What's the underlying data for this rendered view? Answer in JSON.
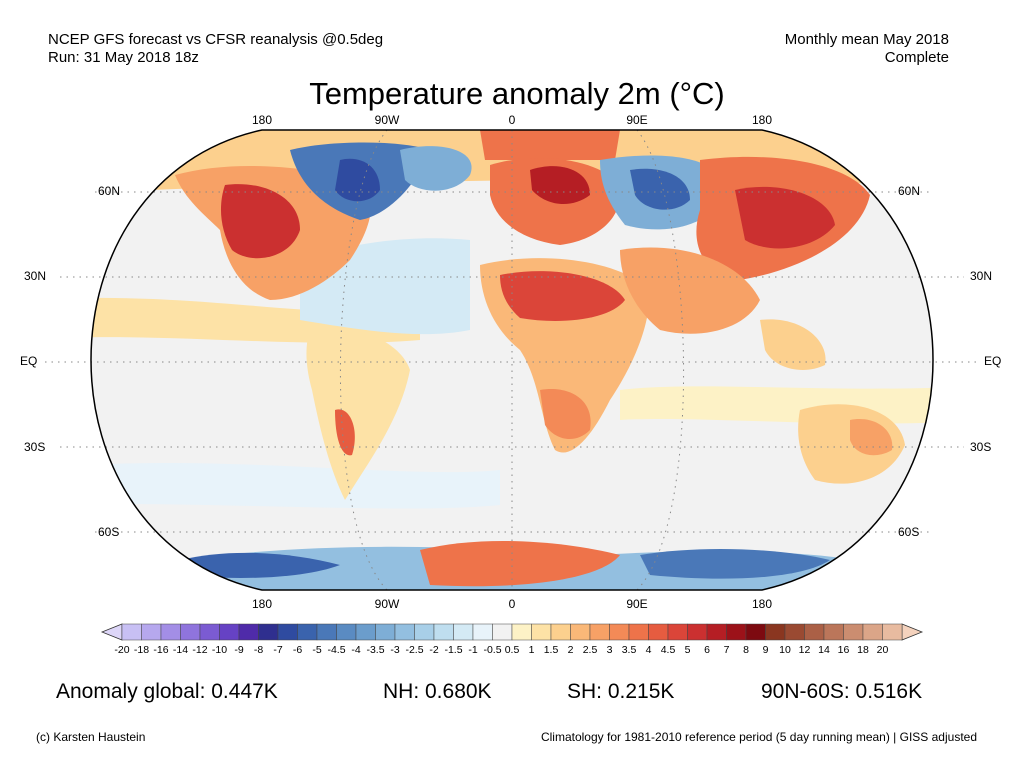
{
  "header": {
    "left_line1": "NCEP GFS forecast vs CFSR reanalysis @0.5deg",
    "left_line2": "Run: 31 May 2018 18z",
    "right_line1": "Monthly mean May 2018",
    "right_line2": "Complete"
  },
  "title": "Temperature anomaly 2m (°C)",
  "lon_labels": [
    "180",
    "90W",
    "0",
    "90E",
    "180"
  ],
  "lat_labels": [
    "60N",
    "30N",
    "EQ",
    "30S",
    "60S"
  ],
  "colorbar": {
    "ticks": [
      "-20",
      "-18",
      "-16",
      "-14",
      "-12",
      "-10",
      "-9",
      "-8",
      "-7",
      "-6",
      "-5",
      "-4.5",
      "-4",
      "-3.5",
      "-3",
      "-2.5",
      "-2",
      "-1.5",
      "-1",
      "-0.5",
      "0.5",
      "1",
      "1.5",
      "2",
      "2.5",
      "3",
      "3.5",
      "4",
      "4.5",
      "5",
      "6",
      "7",
      "8",
      "9",
      "10",
      "12",
      "14",
      "16",
      "18",
      "20"
    ],
    "colors": [
      "#c8c0f4",
      "#b6a8ee",
      "#a38ee6",
      "#8f74dd",
      "#7b5bd2",
      "#6642c4",
      "#4f2ba9",
      "#2f2f8f",
      "#2f4ba0",
      "#3a63ad",
      "#4a78b8",
      "#5a8bc2",
      "#6b9dcc",
      "#7eaed6",
      "#93bfe0",
      "#a8cfe8",
      "#bfdeef",
      "#d4eaf5",
      "#e8f3fa",
      "#f2f2f2",
      "#fdf2c6",
      "#fde2a6",
      "#fcd08e",
      "#fab878",
      "#f7a166",
      "#f38a57",
      "#ee734a",
      "#e65c40",
      "#db4539",
      "#cb3030",
      "#b51e24",
      "#9c1219",
      "#7d0a10",
      "#8a3620",
      "#9a4a32",
      "#ab6046",
      "#bb765a",
      "#cb8d70",
      "#dba588",
      "#e8bba0"
    ],
    "lower_extend_color": "#ddd6f8",
    "upper_extend_color": "#f4d2bd"
  },
  "stats": {
    "global": "Anomaly global: 0.447K",
    "nh": "NH: 0.680K",
    "sh": "SH: 0.215K",
    "polar": "90N-60S: 0.516K"
  },
  "footer": {
    "left": "(c) Karsten Haustein",
    "right": "Climatology for 1981-2010 reference period (5 day running mean) | GISS adjusted"
  },
  "map": {
    "projection": "Robinson",
    "ocean_color": "#f2f2f2",
    "land_color": "#f6e8c6",
    "warm_color": "#e65c40",
    "cold_color": "#4a78b8"
  }
}
